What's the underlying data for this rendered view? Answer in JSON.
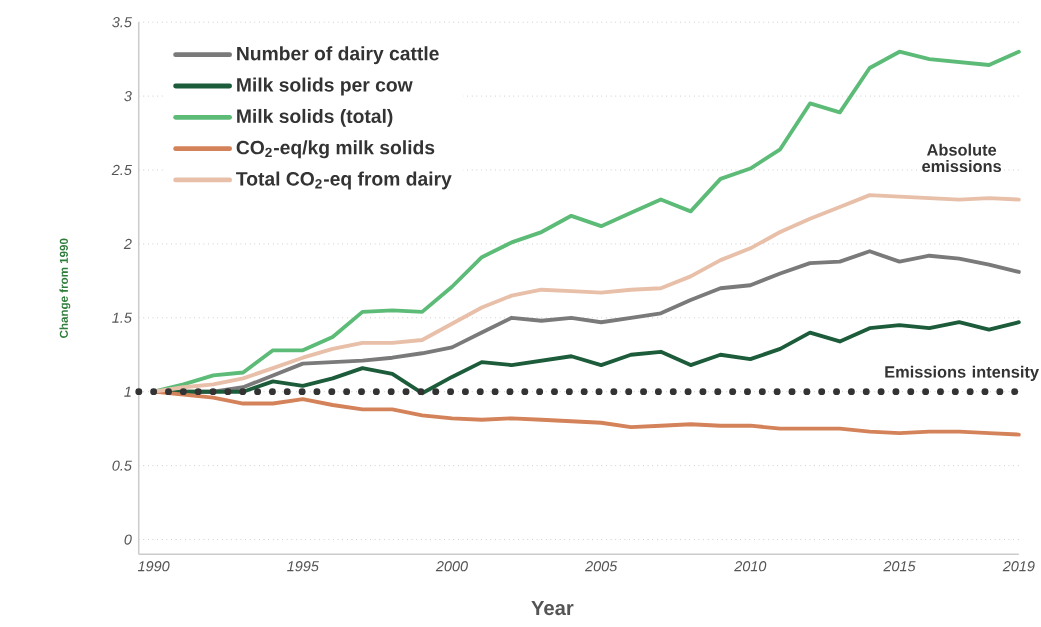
{
  "chart_data": {
    "type": "line",
    "xlabel": "Year",
    "ylabel": "Change from 1990",
    "x": [
      1990,
      1991,
      1992,
      1993,
      1994,
      1995,
      1996,
      1997,
      1998,
      1999,
      2000,
      2001,
      2002,
      2003,
      2004,
      2005,
      2006,
      2007,
      2008,
      2009,
      2010,
      2011,
      2012,
      2013,
      2014,
      2015,
      2016,
      2017,
      2018,
      2019
    ],
    "series": [
      {
        "name": "Number of dairy cattle",
        "color": "#7a7a7a",
        "values": [
          1.0,
          1.0,
          1.0,
          1.03,
          1.11,
          1.19,
          1.2,
          1.21,
          1.23,
          1.26,
          1.3,
          1.4,
          1.5,
          1.48,
          1.5,
          1.47,
          1.5,
          1.53,
          1.62,
          1.7,
          1.72,
          1.8,
          1.87,
          1.88,
          1.95,
          1.88,
          1.92,
          1.9,
          1.86,
          1.81
        ]
      },
      {
        "name": "Milk solids per cow",
        "color": "#1d5c3a",
        "values": [
          1.0,
          1.0,
          1.0,
          1.0,
          1.07,
          1.04,
          1.09,
          1.16,
          1.12,
          0.99,
          1.1,
          1.2,
          1.18,
          1.21,
          1.24,
          1.18,
          1.25,
          1.27,
          1.18,
          1.25,
          1.22,
          1.29,
          1.4,
          1.34,
          1.43,
          1.45,
          1.43,
          1.47,
          1.42,
          1.47
        ]
      },
      {
        "name": "Milk solids (total)",
        "color": "#5dbb78",
        "values": [
          1.0,
          1.05,
          1.11,
          1.13,
          1.28,
          1.28,
          1.37,
          1.54,
          1.55,
          1.54,
          1.71,
          1.91,
          2.01,
          2.08,
          2.19,
          2.12,
          2.21,
          2.3,
          2.22,
          2.44,
          2.51,
          2.64,
          2.95,
          2.89,
          3.19,
          3.3,
          3.25,
          3.23,
          3.21,
          3.3
        ]
      },
      {
        "name": "CO$_{2}$-eq/kg milk solids",
        "color": "#d4825a",
        "values": [
          1.0,
          0.98,
          0.96,
          0.92,
          0.92,
          0.95,
          0.91,
          0.88,
          0.88,
          0.84,
          0.82,
          0.81,
          0.82,
          0.81,
          0.8,
          0.79,
          0.76,
          0.77,
          0.78,
          0.77,
          0.77,
          0.75,
          0.75,
          0.75,
          0.73,
          0.72,
          0.73,
          0.73,
          0.72,
          0.71
        ]
      },
      {
        "name": "Total CO$_{2}$-eq from dairy",
        "color": "#e8bfa8",
        "values": [
          1.0,
          1.03,
          1.05,
          1.09,
          1.16,
          1.23,
          1.29,
          1.33,
          1.33,
          1.35,
          1.46,
          1.57,
          1.65,
          1.69,
          1.68,
          1.67,
          1.69,
          1.7,
          1.78,
          1.89,
          1.97,
          2.08,
          2.17,
          2.25,
          2.33,
          2.32,
          2.31,
          2.3,
          2.31,
          2.3
        ]
      }
    ],
    "xlim": [
      1989.5,
      2019
    ],
    "ylim": [
      -0.1,
      3.5
    ],
    "xticks": [
      1990,
      1995,
      2000,
      2005,
      2010,
      2015,
      2019
    ],
    "yticks": [
      0,
      0.5,
      1,
      1.5,
      2,
      2.5,
      3,
      3.5
    ],
    "ref_lines": [
      {
        "axis": "y",
        "value": 1,
        "color": "#333333",
        "line_style": "dotted"
      }
    ],
    "annotations": [
      "Absolute emissions",
      "Emissions intensity"
    ],
    "grid": "y",
    "legend": "top left",
    "marker": "none",
    "line_style": "solid"
  }
}
